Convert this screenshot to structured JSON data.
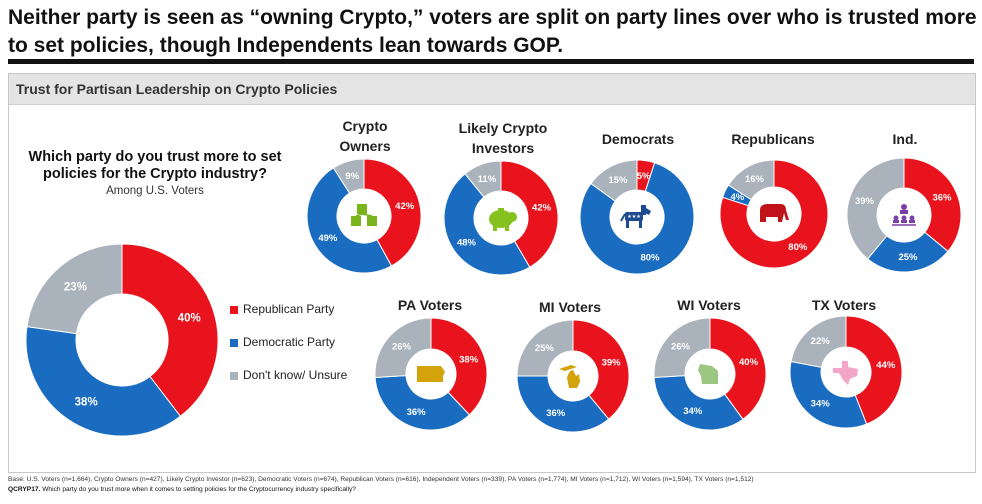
{
  "headline": "Neither party is seen as “owning Crypto,” voters are split on party lines over who is trusted more to set policies, though Independents lean towards GOP.",
  "panel_title": "Trust for Partisan Leadership on Crypto Policies",
  "question": "Which party do you trust more to set policies for the Crypto industry?",
  "subtitle": "Among U.S. Voters",
  "colors": {
    "republican": "#e8131c",
    "democratic": "#1a6cc0",
    "unsure": "#aab3bc"
  },
  "legend": [
    "Republican Party",
    "Democratic Party",
    "Don't know/ Unsure"
  ],
  "footnote_base": "Base: U.S. Voters (n=1,664), Crypto Owners (n=427), Likely Crypto Investor (n=623), Democratic Voters (n=674), Republican Voters (n=616), Independent Voters (n=339), PA Voters (n=1,774), MI Voters (n=1,712), WI Voters (n=1,594), TX Voters (n=1,512)",
  "footnote_q_code": "QCRYP17.",
  "footnote_q_text": " Which party do you trust more when it comes to setting policies for the Cryptocurrency industry specifically?",
  "chart_data": [
    {
      "type": "pie",
      "name": "U.S. Voters",
      "title": "",
      "categories": [
        "Republican Party",
        "Democratic Party",
        "Don't know/ Unsure"
      ],
      "values": [
        40,
        38,
        23
      ],
      "icon": ""
    },
    {
      "type": "pie",
      "name": "Crypto Owners",
      "title": "Crypto Owners",
      "categories": [
        "Republican Party",
        "Democratic Party",
        "Don't know/ Unsure"
      ],
      "values": [
        42,
        49,
        9
      ],
      "icon": "blocks-icon"
    },
    {
      "type": "pie",
      "name": "Likely Crypto Investors",
      "title": "Likely Crypto Investors",
      "categories": [
        "Republican Party",
        "Democratic Party",
        "Don't know/ Unsure"
      ],
      "values": [
        42,
        48,
        11
      ],
      "icon": "piggy-bank-icon"
    },
    {
      "type": "pie",
      "name": "Democrats",
      "title": "Democrats",
      "categories": [
        "Republican Party",
        "Democratic Party",
        "Don't know/ Unsure"
      ],
      "values": [
        5,
        80,
        15
      ],
      "icon": "donkey-icon"
    },
    {
      "type": "pie",
      "name": "Republicans",
      "title": "Republicans",
      "categories": [
        "Republican Party",
        "Democratic Party",
        "Don't know/ Unsure"
      ],
      "values": [
        80,
        4,
        16
      ],
      "icon": "elephant-icon"
    },
    {
      "type": "pie",
      "name": "Ind.",
      "title": "Ind.",
      "categories": [
        "Republican Party",
        "Democratic Party",
        "Don't know/ Unsure"
      ],
      "values": [
        36,
        25,
        39
      ],
      "icon": "people-hierarchy-icon"
    },
    {
      "type": "pie",
      "name": "PA Voters",
      "title": "PA Voters",
      "categories": [
        "Republican Party",
        "Democratic Party",
        "Don't know/ Unsure"
      ],
      "values": [
        38,
        36,
        26
      ],
      "icon": "pennsylvania-map-icon"
    },
    {
      "type": "pie",
      "name": "MI Voters",
      "title": "MI Voters",
      "categories": [
        "Republican Party",
        "Democratic Party",
        "Don't know/ Unsure"
      ],
      "values": [
        39,
        36,
        25
      ],
      "icon": "michigan-map-icon"
    },
    {
      "type": "pie",
      "name": "WI Voters",
      "title": "WI Voters",
      "categories": [
        "Republican Party",
        "Democratic Party",
        "Don't know/ Unsure"
      ],
      "values": [
        40,
        34,
        26
      ],
      "icon": "wisconsin-map-icon"
    },
    {
      "type": "pie",
      "name": "TX Voters",
      "title": "TX Voters",
      "categories": [
        "Republican Party",
        "Democratic Party",
        "Don't know/ Unsure"
      ],
      "values": [
        44,
        34,
        22
      ],
      "icon": "texas-map-icon"
    }
  ]
}
